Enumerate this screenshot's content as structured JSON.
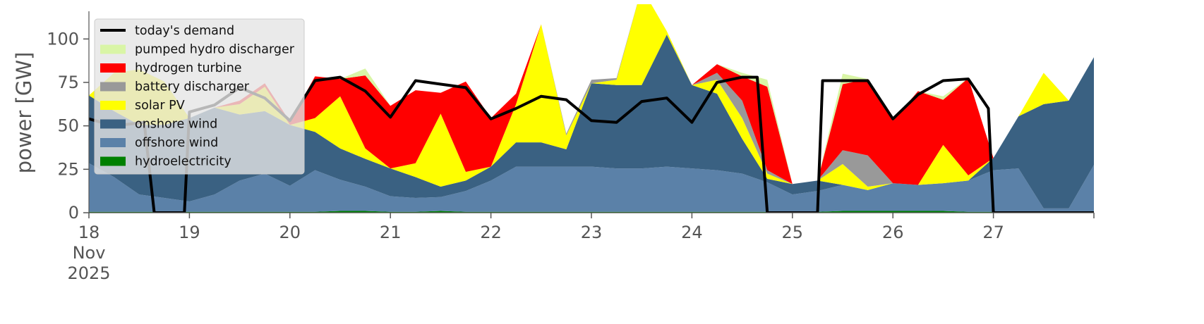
{
  "chart_data": {
    "type": "area",
    "stacked": true,
    "ylabel": "power [GW]",
    "xlabel": "",
    "ylim": [
      0,
      120
    ],
    "yticks": [
      0,
      25,
      50,
      75,
      100
    ],
    "xlim": [
      0,
      10
    ],
    "x_ticks": [
      {
        "day": 0,
        "lines": [
          "18",
          "Nov",
          "2025"
        ]
      },
      {
        "day": 1,
        "lines": [
          "19"
        ]
      },
      {
        "day": 2,
        "lines": [
          "20"
        ]
      },
      {
        "day": 3,
        "lines": [
          "21"
        ]
      },
      {
        "day": 4,
        "lines": [
          "22"
        ]
      },
      {
        "day": 5,
        "lines": [
          "23"
        ]
      },
      {
        "day": 6,
        "lines": [
          "24"
        ]
      },
      {
        "day": 7,
        "lines": [
          "25"
        ]
      },
      {
        "day": 8,
        "lines": [
          "26"
        ]
      },
      {
        "day": 9,
        "lines": [
          "27"
        ]
      }
    ],
    "legend_position": "top-left",
    "legend": [
      "today's demand",
      "pumped hydro discharger",
      "hydrogen turbine",
      "battery discharger",
      "solar PV",
      "onshore wind",
      "offshore wind",
      "hydroelectricity"
    ],
    "x": [
      0,
      0.25,
      0.5,
      0.75,
      1,
      1.25,
      1.5,
      1.75,
      2,
      2.25,
      2.5,
      2.75,
      3,
      3.25,
      3.5,
      3.75,
      4,
      4.25,
      4.5,
      4.75,
      5,
      5.25,
      5.5,
      5.75,
      6,
      6.25,
      6.5,
      6.75,
      7,
      7.25,
      7.5,
      7.75,
      8,
      8.25,
      8.5,
      8.75,
      9,
      9.25,
      9.5,
      9.75,
      10
    ],
    "series": [
      {
        "name": "hydroelectricity",
        "color": "#008000",
        "values": [
          0.5,
          0.5,
          0.5,
          0.5,
          0.5,
          0.5,
          0.5,
          0.5,
          0.5,
          0.5,
          1.0,
          1.0,
          0.5,
          0.5,
          1.0,
          0.5,
          0.5,
          0.5,
          0.5,
          0.5,
          0.5,
          0.5,
          0.5,
          0.5,
          0.5,
          0.5,
          0.5,
          0.5,
          0.5,
          0.5,
          1.0,
          1.0,
          1.0,
          1.0,
          1.0,
          0.5,
          0.5,
          0.5,
          0.5,
          0.5,
          0.5
        ]
      },
      {
        "name": "offshore wind",
        "color": "#5b81a8",
        "values": [
          28,
          20,
          10,
          8,
          6,
          10,
          18,
          22,
          15,
          24,
          18,
          14,
          9,
          8,
          8,
          12,
          18,
          26,
          26,
          26,
          26,
          25,
          25,
          26,
          25,
          24,
          22,
          17,
          10,
          12,
          15,
          12,
          16,
          15,
          16,
          18,
          24,
          25,
          2,
          2,
          27
        ]
      },
      {
        "name": "onshore wind",
        "color": "#3a6182",
        "values": [
          39,
          38,
          40,
          42,
          48,
          50,
          38,
          36,
          35,
          22,
          18,
          16,
          16,
          12,
          6,
          6,
          8,
          14,
          14,
          10,
          48,
          48,
          48,
          76,
          48,
          44,
          20,
          2,
          6,
          6,
          0,
          0,
          0,
          0,
          0,
          0,
          7,
          30,
          60,
          62,
          62
        ]
      },
      {
        "name": "solar PV",
        "color": "#ffff00",
        "values": [
          0,
          22,
          32,
          25,
          0,
          0,
          6,
          14,
          0,
          8,
          30,
          6,
          0,
          8,
          42,
          5,
          0,
          22,
          68,
          8,
          0,
          3,
          56,
          2,
          0,
          8,
          12,
          3,
          0,
          0,
          12,
          2,
          0,
          0,
          22,
          3,
          0,
          0,
          18,
          0,
          0
        ]
      },
      {
        "name": "battery discharger",
        "color": "#999999",
        "values": [
          0,
          0,
          0,
          0,
          0,
          0,
          0,
          0,
          0,
          0,
          0,
          0,
          0,
          0,
          0,
          0,
          0,
          0,
          0,
          1,
          2,
          1,
          0,
          0,
          0,
          4,
          10,
          2,
          0,
          0,
          8,
          18,
          0,
          0,
          0,
          0,
          0,
          0,
          0,
          0,
          0
        ]
      },
      {
        "name": "hydrogen turbine",
        "color": "#ff0000",
        "values": [
          0,
          0,
          0,
          0,
          0,
          0,
          2,
          2,
          2,
          24,
          10,
          42,
          36,
          42,
          12,
          52,
          28,
          6,
          0,
          0,
          0,
          0,
          0,
          0,
          0,
          5,
          14,
          48,
          0,
          0,
          38,
          44,
          36,
          54,
          26,
          56,
          0,
          0,
          0,
          0,
          0
        ]
      },
      {
        "name": "pumped hydro discharger",
        "color": "#d9f5a6",
        "values": [
          0,
          0,
          0,
          0,
          0,
          0,
          0,
          0,
          0,
          0,
          0,
          4,
          0,
          0,
          0,
          0,
          0,
          0,
          0,
          0,
          0,
          0,
          0,
          0,
          0,
          0,
          2,
          4,
          0,
          0,
          6,
          0,
          0,
          0,
          2,
          0,
          0,
          0,
          0,
          0,
          0
        ]
      }
    ],
    "demand": {
      "name": "today's demand",
      "color": "#000000",
      "x": [
        0,
        0.25,
        0.55,
        0.65,
        0.95,
        1.0,
        1.25,
        1.5,
        1.75,
        2.0,
        2.25,
        2.5,
        2.75,
        3.0,
        3.25,
        3.5,
        3.75,
        4.0,
        4.25,
        4.5,
        4.75,
        5.0,
        5.25,
        5.5,
        5.75,
        6.0,
        6.25,
        6.5,
        6.65,
        6.75,
        7.0,
        7.25,
        7.3,
        7.5,
        7.75,
        8.0,
        8.25,
        8.5,
        8.75,
        8.95,
        9.0,
        9.25,
        9.5,
        9.75,
        10.0
      ],
      "values": [
        54,
        50,
        52,
        0,
        0,
        58,
        62,
        72,
        66,
        53,
        76,
        78,
        70,
        55,
        76,
        74,
        72,
        54,
        60,
        67,
        65,
        53,
        52,
        64,
        66,
        52,
        75,
        78,
        78,
        0,
        0,
        0,
        76,
        76,
        76,
        54,
        68,
        76,
        77,
        60,
        0,
        0,
        0,
        0,
        0
      ]
    }
  }
}
